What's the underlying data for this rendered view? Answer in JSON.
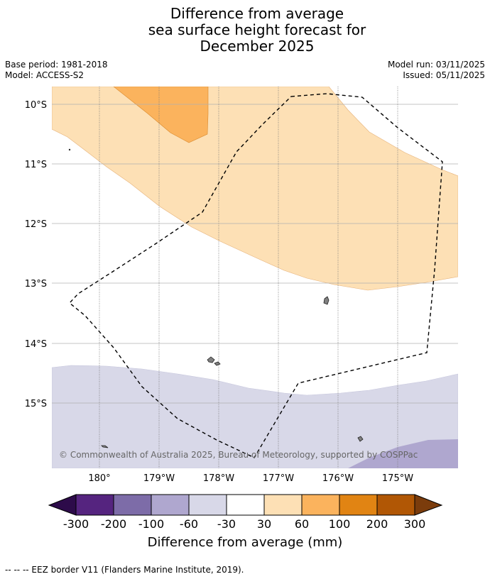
{
  "title": {
    "line1": "Difference from average",
    "line2": "sea surface height forecast for",
    "line3": "December 2025"
  },
  "meta": {
    "base_period": "Base period: 1981-2018",
    "model": "Model: ACCESS-S2",
    "model_run": "Model run: 03/11/2025",
    "issued": "Issued: 05/11/2025"
  },
  "map": {
    "lat_labels": [
      "10°S",
      "11°S",
      "12°S",
      "13°S",
      "14°S",
      "15°S"
    ],
    "lon_labels": [
      "180°",
      "179°W",
      "178°W",
      "177°W",
      "176°W",
      "175°W"
    ],
    "copyright": "© Commonwealth of Australia 2025, Bureau of Meteorology, supported by COSPPac"
  },
  "colorbar": {
    "ticks": [
      "-300",
      "-200",
      "-100",
      "-60",
      "-30",
      "30",
      "60",
      "100",
      "200",
      "300"
    ],
    "colors": {
      "under": "#2d0b4a",
      "c1": "#55247f",
      "c2": "#7d6ca8",
      "c3": "#afa7cf",
      "c4": "#d8d8e8",
      "c5": "#ffffff",
      "c6": "#fde0b5",
      "c7": "#fbb35d",
      "c8": "#e18413",
      "c9": "#b15705",
      "over": "#7b3c0c"
    },
    "label": "Difference from average (mm)"
  },
  "footer": {
    "legend_text": "--  --  -- EEZ border V11 (Flanders Marine Institute, 2019)."
  }
}
